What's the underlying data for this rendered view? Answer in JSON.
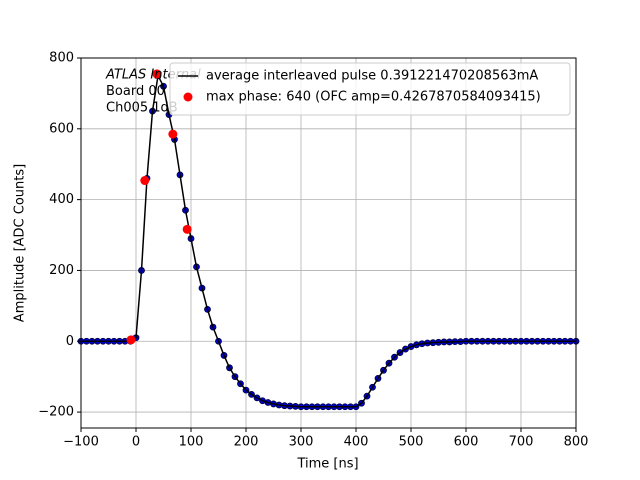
{
  "chart_data": {
    "type": "line",
    "xlabel": "Time [ns]",
    "ylabel": "Amplitude [ADC Counts]",
    "annotations": [
      "ATLAS Internal",
      "Board 00",
      "Ch005 1dB"
    ],
    "x": [
      -100,
      -90,
      -80,
      -70,
      -60,
      -50,
      -40,
      -30,
      -20,
      -10,
      0,
      10,
      20,
      30,
      40,
      50,
      60,
      70,
      80,
      90,
      100,
      110,
      120,
      130,
      140,
      150,
      160,
      170,
      180,
      190,
      200,
      210,
      220,
      230,
      240,
      250,
      260,
      270,
      280,
      290,
      300,
      310,
      320,
      330,
      340,
      350,
      360,
      370,
      380,
      390,
      400,
      410,
      420,
      430,
      440,
      450,
      460,
      470,
      480,
      490,
      500,
      510,
      520,
      530,
      540,
      550,
      560,
      570,
      580,
      590,
      600,
      610,
      620,
      630,
      640,
      650,
      660,
      670,
      680,
      690,
      700,
      710,
      720,
      730,
      740,
      750,
      760,
      770,
      780,
      790,
      800
    ],
    "series": [
      {
        "color": "#0000cc",
        "marker": "dot",
        "values": [
          0,
          0,
          0,
          0,
          0,
          0,
          0,
          0,
          0,
          0,
          10,
          200,
          460,
          650,
          750,
          720,
          640,
          570,
          470,
          370,
          290,
          210,
          150,
          90,
          40,
          0,
          -40,
          -75,
          -100,
          -120,
          -138,
          -150,
          -160,
          -168,
          -173,
          -177,
          -180,
          -182,
          -183,
          -184,
          -185,
          -185,
          -185,
          -185,
          -185,
          -185,
          -185,
          -185,
          -185,
          -185,
          -185,
          -175,
          -155,
          -130,
          -105,
          -82,
          -62,
          -45,
          -32,
          -22,
          -15,
          -10,
          -7,
          -5,
          -4,
          -3,
          -2,
          -2,
          -1,
          -1,
          0,
          0,
          0,
          0,
          0,
          0,
          0,
          0,
          0,
          0,
          0,
          0,
          0,
          0,
          0,
          0,
          0,
          0,
          0,
          0,
          0
        ]
      },
      {
        "name": "average interleaved pulse 0.391221470208563mA",
        "color": "#000000",
        "marker": "line",
        "values": [
          0,
          0,
          0,
          0,
          0,
          0,
          0,
          0,
          0,
          0,
          10,
          200,
          460,
          650,
          750,
          720,
          640,
          570,
          470,
          370,
          290,
          210,
          150,
          90,
          40,
          0,
          -40,
          -75,
          -100,
          -120,
          -138,
          -150,
          -160,
          -168,
          -173,
          -177,
          -180,
          -182,
          -183,
          -184,
          -185,
          -185,
          -185,
          -185,
          -185,
          -185,
          -185,
          -185,
          -185,
          -185,
          -185,
          -175,
          -155,
          -130,
          -105,
          -82,
          -62,
          -45,
          -32,
          -22,
          -15,
          -10,
          -7,
          -5,
          -4,
          -3,
          -2,
          -2,
          -1,
          -1,
          0,
          0,
          0,
          0,
          0,
          0,
          0,
          0,
          0,
          0,
          0,
          0,
          0,
          0,
          0,
          0,
          0,
          0,
          0,
          0,
          0
        ]
      },
      {
        "name": "max phase: 640 (OFC amp=0.4267870584093415)",
        "color": "#ff0000",
        "marker": "point",
        "x": [
          -9,
          16,
          38,
          67,
          93
        ],
        "values": [
          4,
          454,
          755,
          585,
          316
        ]
      }
    ],
    "xlim": [
      -100,
      800
    ],
    "xticks": [
      {
        "value": -100,
        "label": "−100"
      },
      0,
      100,
      200,
      300,
      400,
      500,
      600,
      700,
      800
    ],
    "ylim": [
      -245,
      800
    ],
    "yticks": [
      {
        "value": -200,
        "label": "−200"
      },
      0,
      200,
      400,
      600,
      800
    ],
    "grid": true,
    "legend": "upper right"
  }
}
